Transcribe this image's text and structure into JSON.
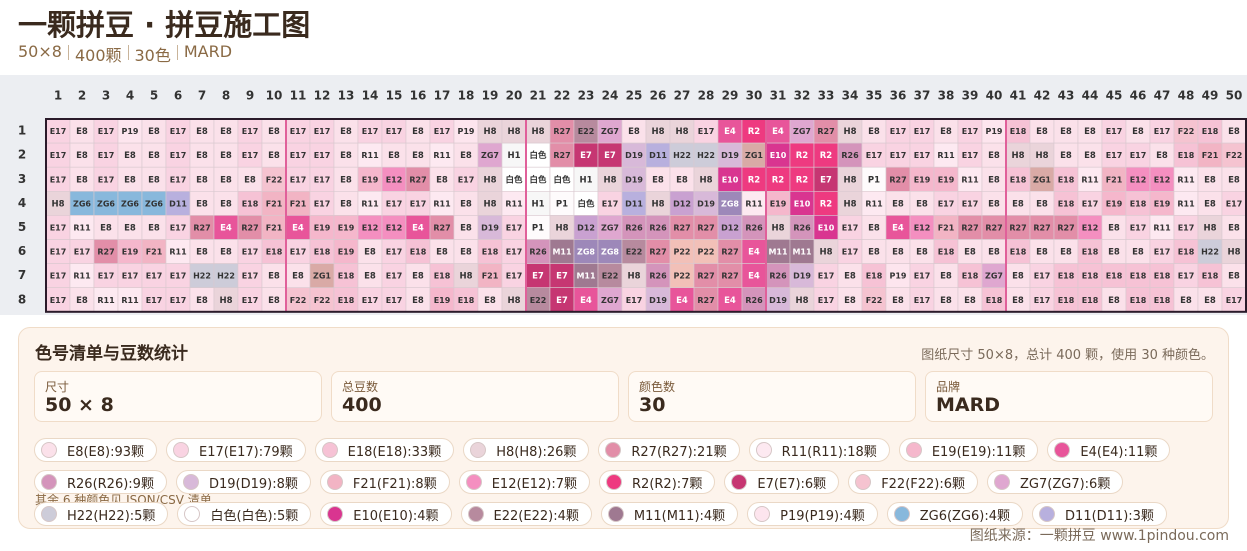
{
  "header": {
    "title": "一颗拼豆 · 拼豆施工图",
    "subtitle_parts": [
      "50×8",
      "400颗",
      "30色",
      "MARD"
    ]
  },
  "grid": {
    "columns": [
      1,
      2,
      3,
      4,
      5,
      6,
      7,
      8,
      9,
      10,
      11,
      12,
      13,
      14,
      15,
      16,
      17,
      18,
      19,
      20,
      21,
      22,
      23,
      24,
      25,
      26,
      27,
      28,
      29,
      30,
      31,
      32,
      33,
      34,
      35,
      36,
      37,
      38,
      39,
      40,
      41,
      42,
      43,
      44,
      45,
      46,
      47,
      48,
      49,
      50
    ],
    "row_numbers": [
      1,
      2,
      3,
      4,
      5,
      6,
      7,
      8
    ],
    "palette": {
      "E8": "#fbe1ea",
      "E17": "#f9d3e2",
      "E18": "#f6c2d5",
      "H8": "#ead4da",
      "R27": "#e28ea8",
      "R11": "#fde9f1",
      "E19": "#f5b7cc",
      "E4": "#e8559a",
      "R26": "#d494bb",
      "D19": "#d8b9d9",
      "F21": "#f2b4c4",
      "E12": "#f48fc0",
      "R2": "#ee3a80",
      "E7": "#c63672",
      "F22": "#f5c3d0",
      "ZG7": "#dfa7d0",
      "H22": "#cdccd9",
      "白色": "#ffffff",
      "E10": "#d93590",
      "E22": "#b78a9e",
      "M11": "#9f7991",
      "P19": "#fde5ee",
      "ZG6": "#88b8dc",
      "D11": "#b8b0de",
      "H1": "#f7f7f7",
      "ZG1": "#d9aaa6",
      "P1": "#fefbfc",
      "D12": "#c9a1d1",
      "P22": "#f2c0b8",
      "ZG8": "#9d88b9"
    },
    "rows": [
      [
        "E17",
        "E8",
        "E17",
        "P19",
        "E8",
        "E17",
        "E8",
        "E8",
        "E17",
        "E8",
        "E17",
        "E17",
        "E8",
        "E17",
        "E17",
        "E8",
        "E17",
        "P19",
        "H8",
        "H8",
        "H8",
        "R27",
        "E22",
        "ZG7",
        "E8",
        "H8",
        "H8",
        "E17",
        "E4",
        "R2",
        "E4",
        "ZG7",
        "R27",
        "H8",
        "E8",
        "E17",
        "E17",
        "E8",
        "E17",
        "P19",
        "E18",
        "E8",
        "E8",
        "E8",
        "E17",
        "E8",
        "E17",
        "F22",
        "E18",
        "E8"
      ],
      [
        "E17",
        "E8",
        "E17",
        "E8",
        "E8",
        "E17",
        "E8",
        "E8",
        "E17",
        "E8",
        "E17",
        "E17",
        "E8",
        "R11",
        "E8",
        "E8",
        "R11",
        "E8",
        "ZG7",
        "H1",
        "白色",
        "R27",
        "E7",
        "E7",
        "D19",
        "D11",
        "H22",
        "H22",
        "D19",
        "ZG1",
        "E10",
        "R2",
        "R2",
        "R26",
        "E17",
        "E17",
        "E17",
        "R11",
        "E17",
        "E8",
        "H8",
        "H8",
        "E8",
        "E8",
        "E17",
        "E17",
        "E8",
        "E18",
        "F21",
        "F22"
      ],
      [
        "E17",
        "E8",
        "E17",
        "E8",
        "E8",
        "E17",
        "E8",
        "E8",
        "E8",
        "F22",
        "E17",
        "E17",
        "E8",
        "E19",
        "E12",
        "R27",
        "E8",
        "E17",
        "H8",
        "白色",
        "白色",
        "白色",
        "H1",
        "H8",
        "D19",
        "E8",
        "E8",
        "H8",
        "E10",
        "R2",
        "R2",
        "R2",
        "E7",
        "H8",
        "P1",
        "R27",
        "E19",
        "E19",
        "R11",
        "E8",
        "E18",
        "ZG1",
        "E18",
        "R11",
        "F21",
        "E12",
        "E12",
        "R11",
        "E8",
        "E8"
      ],
      [
        "H8",
        "ZG6",
        "ZG6",
        "ZG6",
        "ZG6",
        "D11",
        "E8",
        "E8",
        "E18",
        "F21",
        "F21",
        "E17",
        "E8",
        "R11",
        "E17",
        "E17",
        "R11",
        "E8",
        "H8",
        "R11",
        "H1",
        "P1",
        "白色",
        "E17",
        "D11",
        "H8",
        "D12",
        "D19",
        "ZG8",
        "R11",
        "E19",
        "E10",
        "R2",
        "H8",
        "R11",
        "E8",
        "E8",
        "E17",
        "E17",
        "E8",
        "E8",
        "E8",
        "E18",
        "E17",
        "E19",
        "E18",
        "E19",
        "R11",
        "E8",
        "E17"
      ],
      [
        "E17",
        "R11",
        "E8",
        "E8",
        "E8",
        "E17",
        "R27",
        "E4",
        "R27",
        "F21",
        "E4",
        "E19",
        "E19",
        "E12",
        "E12",
        "E4",
        "R27",
        "E8",
        "D19",
        "E17",
        "P1",
        "H8",
        "D12",
        "ZG7",
        "R26",
        "R26",
        "R27",
        "R27",
        "D12",
        "R26",
        "H8",
        "R26",
        "E10",
        "E17",
        "E8",
        "E4",
        "E12",
        "F21",
        "R27",
        "R27",
        "R27",
        "R27",
        "R27",
        "E12",
        "E8",
        "E17",
        "R11",
        "E17",
        "H8",
        "E8"
      ],
      [
        "E17",
        "E17",
        "R27",
        "E19",
        "F21",
        "R11",
        "E8",
        "E8",
        "E17",
        "E18",
        "E17",
        "E18",
        "E19",
        "E8",
        "E17",
        "E18",
        "E8",
        "E8",
        "E18",
        "E17",
        "R26",
        "M11",
        "ZG8",
        "ZG8",
        "E22",
        "R27",
        "P22",
        "P22",
        "R27",
        "E4",
        "M11",
        "M11",
        "H8",
        "E17",
        "E8",
        "E8",
        "E8",
        "E18",
        "E8",
        "E8",
        "E18",
        "E8",
        "E8",
        "E18",
        "E8",
        "E8",
        "E17",
        "E18",
        "H22",
        "H8"
      ],
      [
        "E17",
        "R11",
        "E17",
        "E17",
        "E17",
        "E17",
        "H22",
        "H22",
        "E17",
        "E8",
        "E8",
        "ZG1",
        "E18",
        "E8",
        "E17",
        "E8",
        "E18",
        "H8",
        "F21",
        "E17",
        "E7",
        "E7",
        "M11",
        "E22",
        "H8",
        "R26",
        "P22",
        "R27",
        "R27",
        "E4",
        "R26",
        "D19",
        "E17",
        "E8",
        "E18",
        "P19",
        "E17",
        "E8",
        "E18",
        "ZG7",
        "E8",
        "E17",
        "E18",
        "E18",
        "E18",
        "E18",
        "E18",
        "E17",
        "E18",
        "E8"
      ],
      [
        "E17",
        "E8",
        "R11",
        "R11",
        "E17",
        "E17",
        "E8",
        "H8",
        "E17",
        "E8",
        "F22",
        "F22",
        "E18",
        "E17",
        "E17",
        "E8",
        "E19",
        "E18",
        "E8",
        "H8",
        "E22",
        "E7",
        "E4",
        "ZG7",
        "E17",
        "D19",
        "E4",
        "R27",
        "E4",
        "R26",
        "D19",
        "H8",
        "E17",
        "E8",
        "F22",
        "E8",
        "E17",
        "E8",
        "E8",
        "E18",
        "E8",
        "E17",
        "E18",
        "E18",
        "E8",
        "E18",
        "E18",
        "E8",
        "E8",
        "E17"
      ]
    ]
  },
  "summary": {
    "title": "色号清单与豆数统计",
    "note": "图纸尺寸 50×8，总计 400 颗，使用 30 种颜色。",
    "cards": [
      {
        "label": "尺寸",
        "value": "50 × 8"
      },
      {
        "label": "总豆数",
        "value": "400"
      },
      {
        "label": "颜色数",
        "value": "30"
      },
      {
        "label": "品牌",
        "value": "MARD"
      }
    ],
    "legend": [
      {
        "color": "#fbe1ea",
        "label": "E8(E8):93颗"
      },
      {
        "color": "#f9d3e2",
        "label": "E17(E17):79颗"
      },
      {
        "color": "#f6c2d5",
        "label": "E18(E18):33颗"
      },
      {
        "color": "#ead4da",
        "label": "H8(H8):26颗"
      },
      {
        "color": "#e28ea8",
        "label": "R27(R27):21颗"
      },
      {
        "color": "#fde9f1",
        "label": "R11(R11):18颗"
      },
      {
        "color": "#f5b7cc",
        "label": "E19(E19):11颗"
      },
      {
        "color": "#e8559a",
        "label": "E4(E4):11颗"
      },
      {
        "color": "#d494bb",
        "label": "R26(R26):9颗"
      },
      {
        "color": "#d8b9d9",
        "label": "D19(D19):8颗"
      },
      {
        "color": "#f2b4c4",
        "label": "F21(F21):8颗"
      },
      {
        "color": "#f48fc0",
        "label": "E12(E12):7颗"
      },
      {
        "color": "#ee3a80",
        "label": "R2(R2):7颗"
      },
      {
        "color": "#c63672",
        "label": "E7(E7):6颗"
      },
      {
        "color": "#f5c3d0",
        "label": "F22(F22):6颗"
      },
      {
        "color": "#dfa7d0",
        "label": "ZG7(ZG7):6颗"
      },
      {
        "color": "#cdccd9",
        "label": "H22(H22):5颗"
      },
      {
        "color": "#ffffff",
        "label": "白色(白色):5颗"
      },
      {
        "color": "#d93590",
        "label": "E10(E10):4颗"
      },
      {
        "color": "#b78a9e",
        "label": "E22(E22):4颗"
      },
      {
        "color": "#9f7991",
        "label": "M11(M11):4颗"
      },
      {
        "color": "#fde5ee",
        "label": "P19(P19):4颗"
      },
      {
        "color": "#88b8dc",
        "label": "ZG6(ZG6):4颗"
      },
      {
        "color": "#b8b0de",
        "label": "D11(D11):3颗"
      }
    ],
    "more_note": "其余 6 种颜色见 JSON/CSV 清单"
  },
  "footer": "图纸来源：一颗拼豆 www.1pindou.com"
}
